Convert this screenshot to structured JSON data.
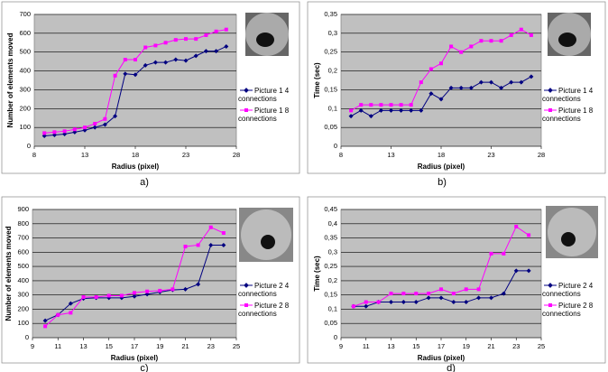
{
  "chart_data": [
    {
      "type": "line",
      "caption": "a)",
      "xlabel": "Radius (pixel)",
      "ylabel": "Number of elements moved",
      "x": [
        9,
        10,
        11,
        12,
        13,
        14,
        15,
        16,
        17,
        18,
        19,
        20,
        21,
        22,
        23,
        24,
        25,
        26,
        27
      ],
      "series": [
        {
          "name": "Picture 1 4 connections",
          "color": "#000080",
          "marker": "diamond",
          "values": [
            55,
            60,
            65,
            75,
            85,
            100,
            115,
            160,
            385,
            380,
            430,
            445,
            445,
            460,
            455,
            480,
            505,
            505,
            530
          ]
        },
        {
          "name": "Picture 1 8 connections",
          "color": "#ff00ff",
          "marker": "square",
          "values": [
            70,
            75,
            80,
            90,
            100,
            120,
            145,
            375,
            460,
            460,
            525,
            535,
            550,
            565,
            570,
            570,
            590,
            610,
            620
          ]
        }
      ],
      "xlim": [
        8,
        28
      ],
      "xticks": [
        8,
        13,
        18,
        23,
        28
      ],
      "ylim": [
        0,
        700
      ],
      "yticks": [
        0,
        100,
        200,
        300,
        400,
        500,
        600,
        700
      ],
      "grid": true
    },
    {
      "type": "line",
      "caption": "b)",
      "xlabel": "Radius (pixel)",
      "ylabel": "Time (sec)",
      "x": [
        9,
        10,
        11,
        12,
        13,
        14,
        15,
        16,
        17,
        18,
        19,
        20,
        21,
        22,
        23,
        24,
        25,
        26,
        27
      ],
      "series": [
        {
          "name": "Picture 1 4 connections",
          "color": "#000080",
          "marker": "diamond",
          "values": [
            0.08,
            0.095,
            0.08,
            0.095,
            0.095,
            0.095,
            0.095,
            0.095,
            0.14,
            0.125,
            0.155,
            0.155,
            0.155,
            0.17,
            0.17,
            0.155,
            0.17,
            0.17,
            0.185
          ]
        },
        {
          "name": "Picture 1 8 connections",
          "color": "#ff00ff",
          "marker": "square",
          "values": [
            0.095,
            0.11,
            0.11,
            0.11,
            0.11,
            0.11,
            0.11,
            0.17,
            0.205,
            0.22,
            0.265,
            0.25,
            0.265,
            0.28,
            0.28,
            0.28,
            0.295,
            0.31,
            0.295
          ]
        }
      ],
      "xlim": [
        8,
        28
      ],
      "xticks": [
        8,
        13,
        18,
        23,
        28
      ],
      "ylim": [
        0,
        0.35
      ],
      "yticks": [
        0,
        {
          "value": 0.05,
          "label": "0,05"
        },
        {
          "value": 0.1,
          "label": "0,1"
        },
        {
          "value": 0.15,
          "label": "0,15"
        },
        {
          "value": 0.2,
          "label": "0,2"
        },
        {
          "value": 0.25,
          "label": "0,25"
        },
        {
          "value": 0.3,
          "label": "0,3"
        },
        {
          "value": 0.35,
          "label": "0,35"
        }
      ],
      "grid": true
    },
    {
      "type": "line",
      "caption": "c)",
      "xlabel": "Radius (pixel)",
      "ylabel": "Number of elements moved",
      "x": [
        10,
        11,
        12,
        13,
        14,
        15,
        16,
        17,
        18,
        19,
        20,
        21,
        22,
        23,
        24
      ],
      "series": [
        {
          "name": "Picture 2 4 connections",
          "color": "#000080",
          "marker": "diamond",
          "values": [
            120,
            160,
            240,
            275,
            280,
            280,
            280,
            290,
            305,
            320,
            335,
            340,
            375,
            650,
            650
          ]
        },
        {
          "name": "Picture 2 8 connections",
          "color": "#ff00ff",
          "marker": "square",
          "values": [
            80,
            160,
            175,
            285,
            285,
            295,
            295,
            315,
            325,
            330,
            340,
            640,
            650,
            775,
            735
          ]
        }
      ],
      "xlim": [
        9,
        25
      ],
      "xticks": [
        9,
        11,
        13,
        15,
        17,
        19,
        21,
        23,
        25
      ],
      "ylim": [
        0,
        900
      ],
      "yticks": [
        0,
        100,
        200,
        300,
        400,
        500,
        600,
        700,
        800,
        900
      ],
      "grid": true
    },
    {
      "type": "line",
      "caption": "d)",
      "xlabel": "Radius (pixel)",
      "ylabel": "Time (sec)",
      "x": [
        10,
        11,
        12,
        13,
        14,
        15,
        16,
        17,
        18,
        19,
        20,
        21,
        22,
        23,
        24
      ],
      "series": [
        {
          "name": "Picture 2 4 connections",
          "color": "#000080",
          "marker": "diamond",
          "values": [
            0.11,
            0.11,
            0.125,
            0.125,
            0.125,
            0.125,
            0.14,
            0.14,
            0.125,
            0.125,
            0.14,
            0.14,
            0.155,
            0.235,
            0.235
          ]
        },
        {
          "name": "Picture 2 8 connections",
          "color": "#ff00ff",
          "marker": "square",
          "values": [
            0.11,
            0.125,
            0.125,
            0.155,
            0.155,
            0.155,
            0.155,
            0.17,
            0.155,
            0.17,
            0.17,
            0.295,
            0.295,
            0.39,
            0.36
          ]
        }
      ],
      "xlim": [
        9,
        25
      ],
      "xticks": [
        9,
        11,
        13,
        15,
        17,
        19,
        21,
        23,
        25
      ],
      "ylim": [
        0,
        0.45
      ],
      "yticks": [
        0,
        {
          "value": 0.05,
          "label": "0,05"
        },
        {
          "value": 0.1,
          "label": "0,1"
        },
        {
          "value": 0.15,
          "label": "0,15"
        },
        {
          "value": 0.2,
          "label": "0,2"
        },
        {
          "value": 0.25,
          "label": "0,25"
        },
        {
          "value": 0.3,
          "label": "0,3"
        },
        {
          "value": 0.35,
          "label": "0,35"
        },
        {
          "value": 0.4,
          "label": "0,4"
        },
        {
          "value": 0.45,
          "label": "0,45"
        }
      ],
      "grid": true
    }
  ]
}
